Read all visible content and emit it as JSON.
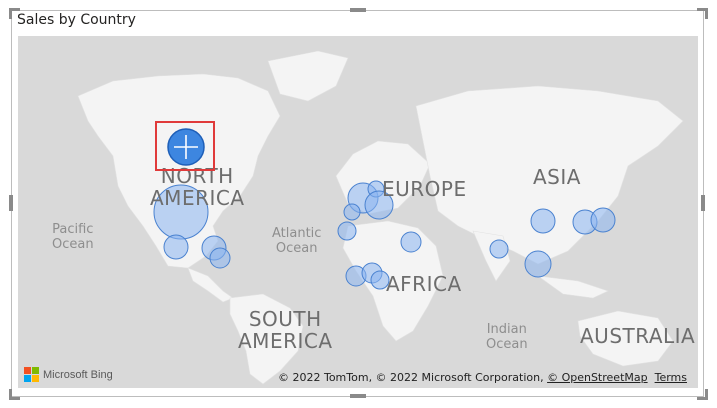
{
  "visual": {
    "title": "Sales by Country"
  },
  "continents": [
    {
      "name": "North America",
      "lines": [
        "North",
        "America"
      ]
    },
    {
      "name": "Europe",
      "lines": [
        "Europe"
      ]
    },
    {
      "name": "Asia",
      "lines": [
        "Asia"
      ]
    },
    {
      "name": "Africa",
      "lines": [
        "Africa"
      ]
    },
    {
      "name": "South America",
      "lines": [
        "South",
        "America"
      ]
    },
    {
      "name": "Australia",
      "lines": [
        "Australia"
      ]
    }
  ],
  "oceans": [
    {
      "lines": [
        "Pacific",
        "Ocean"
      ]
    },
    {
      "lines": [
        "Atlantic",
        "Ocean"
      ]
    },
    {
      "lines": [
        "Indian",
        "Ocean"
      ]
    }
  ],
  "attribution": {
    "prefix": "© 2022 TomTom, © 2022 Microsoft Corporation, ",
    "osm_link": "© OpenStreetMap",
    "terms_link": "Terms"
  },
  "bing": {
    "label": "Microsoft Bing",
    "colors": [
      "#f25022",
      "#7fba00",
      "#00a4ef",
      "#ffb900"
    ]
  },
  "colors": {
    "bubble_fill": "#8ab4f0",
    "bubble_stroke": "#4a82d0",
    "selected_bubble": "#3d86e0"
  },
  "selected_bubble_icon": "crosshair-icon"
}
